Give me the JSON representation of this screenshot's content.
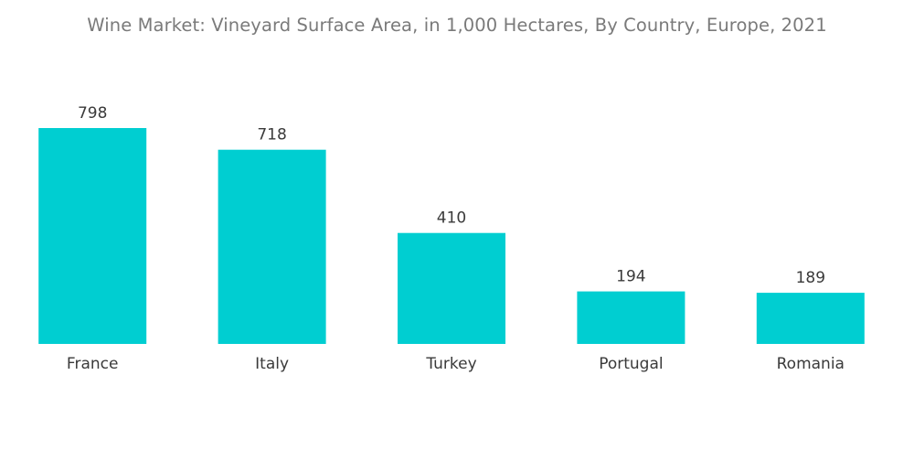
{
  "chart_data": {
    "type": "bar",
    "title": "Wine Market: Vineyard Surface Area, in 1,000 Hectares, By Country, Europe, 2021",
    "categories": [
      "France",
      "Italy",
      "Turkey",
      "Portugal",
      "Romania"
    ],
    "values": [
      798,
      718,
      410,
      194,
      189
    ],
    "xlabel": "",
    "ylabel": "",
    "ylim": [
      0,
      798
    ],
    "grid": false,
    "legend": "none",
    "bar_color": "#00ced1"
  }
}
